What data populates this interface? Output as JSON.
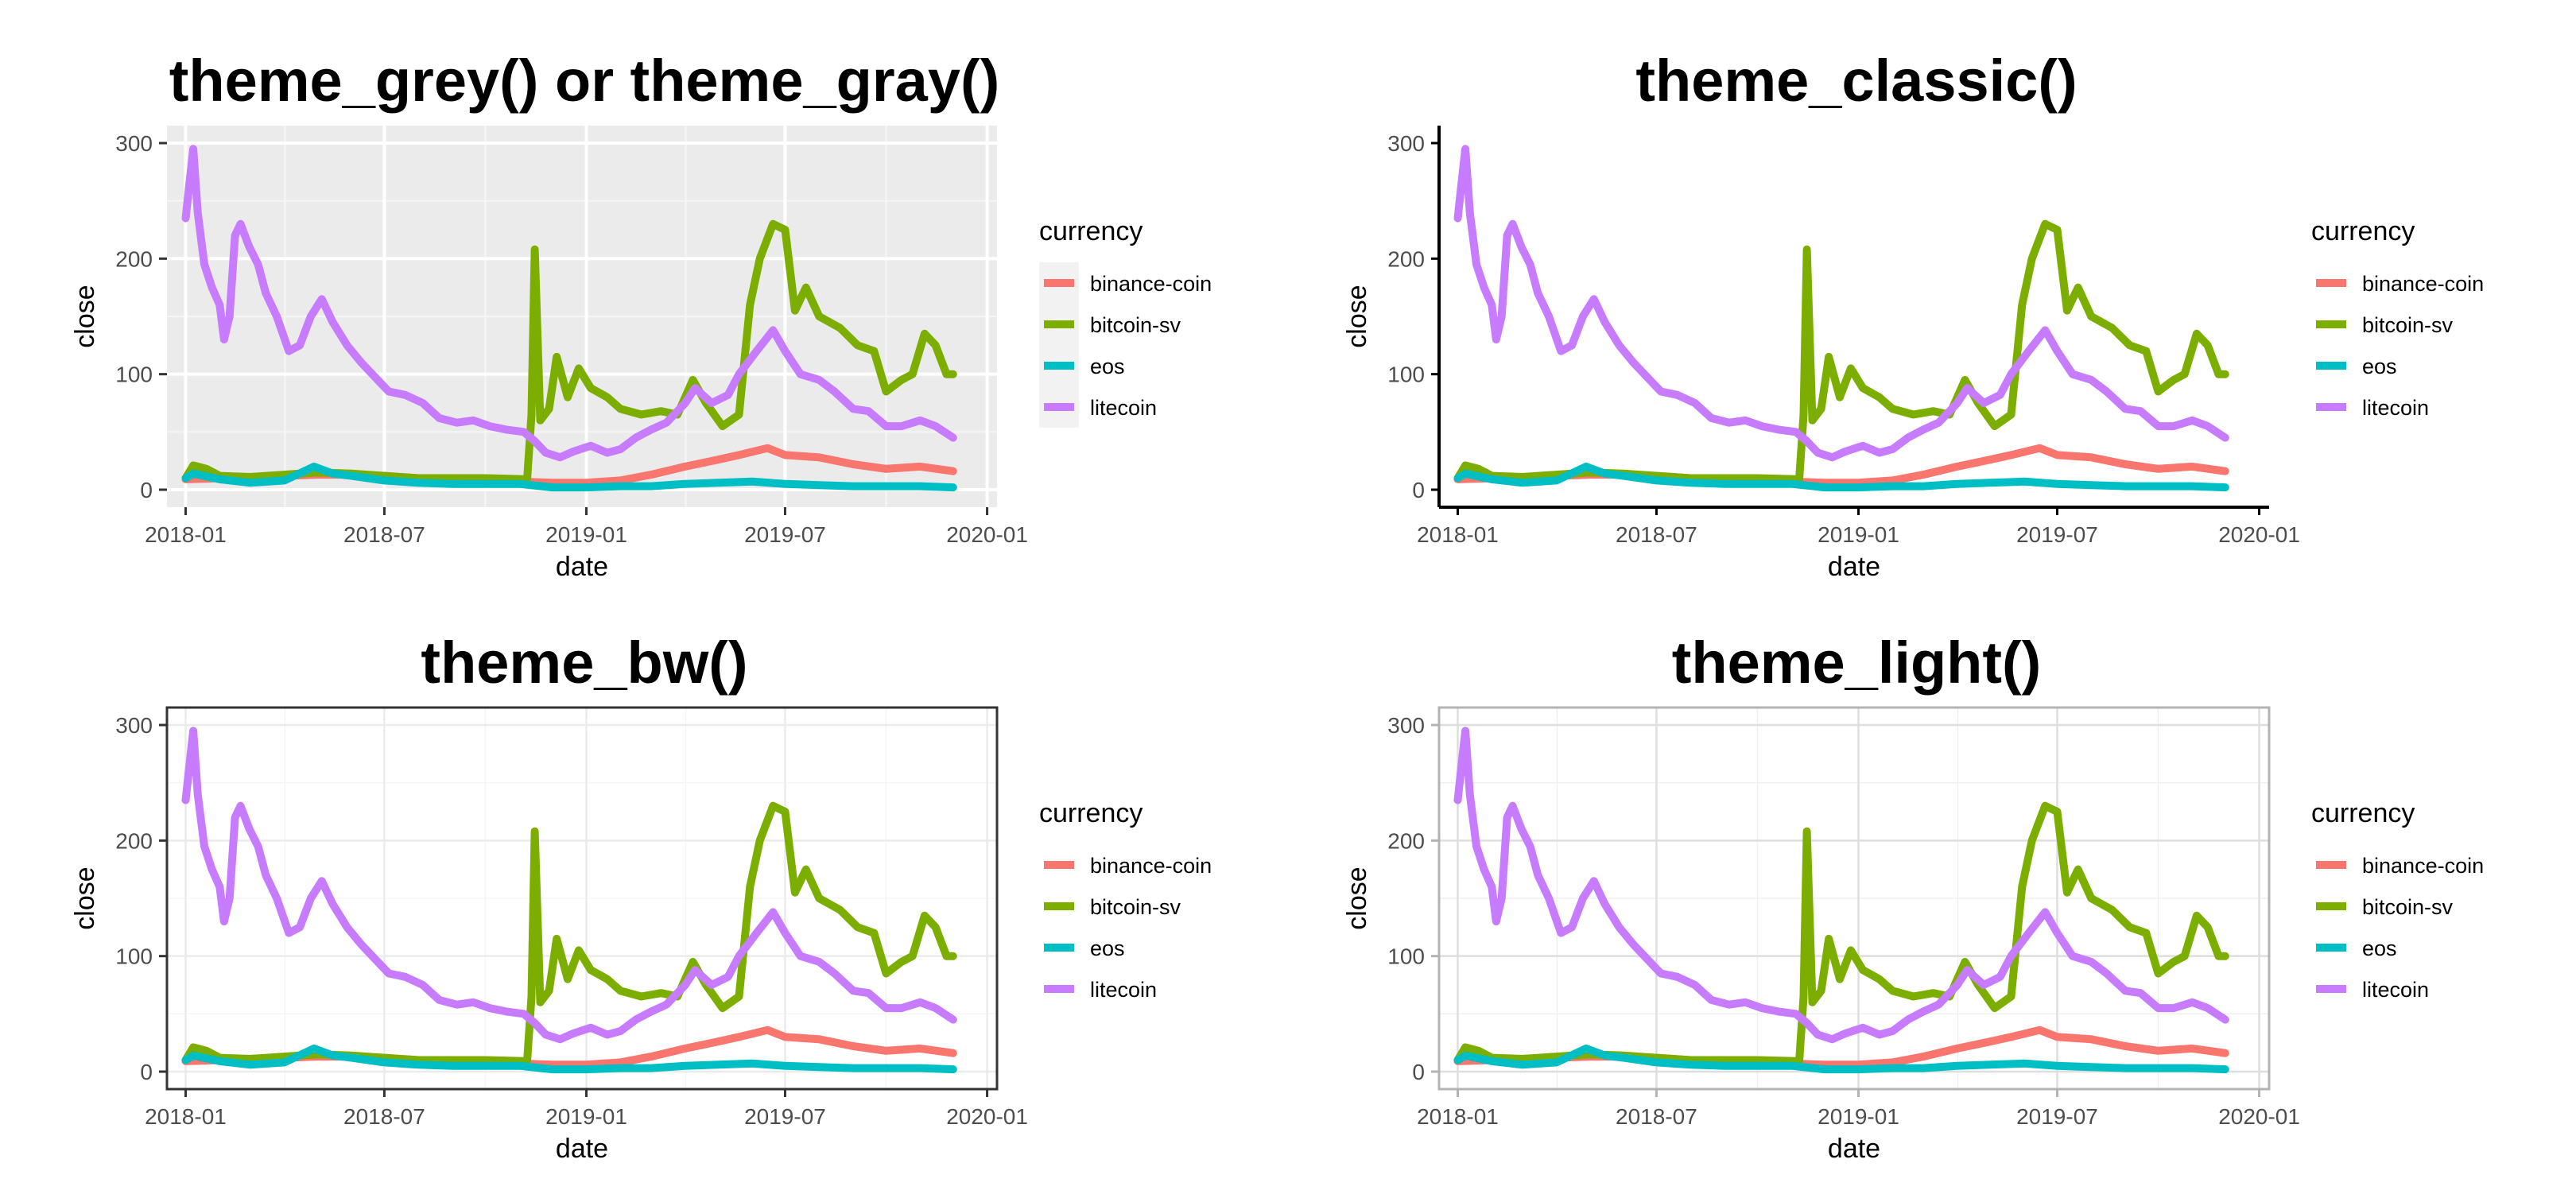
{
  "chart_data": [
    {
      "type": "line",
      "title": "theme_grey()  or  theme_gray()",
      "theme": "grey",
      "xlabel": "date",
      "ylabel": "close",
      "x_ticks": [
        "2018-01",
        "2018-07",
        "2019-01",
        "2019-07",
        "2020-01"
      ],
      "y_ticks": [
        "0",
        "100",
        "200",
        "300"
      ],
      "ylim": [
        0,
        300
      ],
      "legend_title": "currency",
      "legend_position": "right",
      "grid": true
    },
    {
      "type": "line",
      "title": "theme_classic()",
      "theme": "classic",
      "xlabel": "date",
      "ylabel": "close",
      "x_ticks": [
        "2018-01",
        "2018-07",
        "2019-01",
        "2019-07",
        "2020-01"
      ],
      "y_ticks": [
        "0",
        "100",
        "200",
        "300"
      ],
      "ylim": [
        0,
        300
      ],
      "legend_title": "currency",
      "legend_position": "right",
      "grid": false
    },
    {
      "type": "line",
      "title": "theme_bw()",
      "theme": "bw",
      "xlabel": "date",
      "ylabel": "close",
      "x_ticks": [
        "2018-01",
        "2018-07",
        "2019-01",
        "2019-07",
        "2020-01"
      ],
      "y_ticks": [
        "0",
        "100",
        "200",
        "300"
      ],
      "ylim": [
        0,
        300
      ],
      "legend_title": "currency",
      "legend_position": "right",
      "grid": true
    },
    {
      "type": "line",
      "title": "theme_light()",
      "theme": "light",
      "xlabel": "date",
      "ylabel": "close",
      "x_ticks": [
        "2018-01",
        "2018-07",
        "2019-01",
        "2019-07",
        "2020-01"
      ],
      "y_ticks": [
        "0",
        "100",
        "200",
        "300"
      ],
      "ylim": [
        0,
        300
      ],
      "legend_title": "currency",
      "legend_position": "right",
      "grid": true
    }
  ],
  "series": [
    {
      "name": "binance-coin",
      "color": "#F8766D",
      "points": [
        [
          "2018-01-01",
          9
        ],
        [
          "2018-02-01",
          10
        ],
        [
          "2018-03-01",
          11
        ],
        [
          "2018-04-01",
          12
        ],
        [
          "2018-05-01",
          13
        ],
        [
          "2018-06-01",
          13
        ],
        [
          "2018-07-01",
          12
        ],
        [
          "2018-08-01",
          10
        ],
        [
          "2018-09-01",
          9
        ],
        [
          "2018-10-01",
          9
        ],
        [
          "2018-11-01",
          7
        ],
        [
          "2018-12-01",
          6
        ],
        [
          "2019-01-01",
          6
        ],
        [
          "2019-02-01",
          8
        ],
        [
          "2019-03-01",
          13
        ],
        [
          "2019-04-01",
          20
        ],
        [
          "2019-05-01",
          26
        ],
        [
          "2019-05-20",
          30
        ],
        [
          "2019-06-15",
          36
        ],
        [
          "2019-07-01",
          30
        ],
        [
          "2019-08-01",
          28
        ],
        [
          "2019-09-01",
          22
        ],
        [
          "2019-10-01",
          18
        ],
        [
          "2019-11-01",
          20
        ],
        [
          "2019-12-01",
          16
        ]
      ]
    },
    {
      "name": "bitcoin-sv",
      "color": "#7CAE00",
      "points": [
        [
          "2018-01-01",
          10
        ],
        [
          "2018-01-08",
          21
        ],
        [
          "2018-01-20",
          18
        ],
        [
          "2018-02-01",
          12
        ],
        [
          "2018-03-01",
          11
        ],
        [
          "2018-04-01",
          13
        ],
        [
          "2018-05-01",
          15
        ],
        [
          "2018-06-01",
          14
        ],
        [
          "2018-07-01",
          12
        ],
        [
          "2018-08-01",
          10
        ],
        [
          "2018-09-01",
          10
        ],
        [
          "2018-10-01",
          10
        ],
        [
          "2018-11-08",
          9
        ],
        [
          "2018-11-12",
          65
        ],
        [
          "2018-11-15",
          208
        ],
        [
          "2018-11-20",
          60
        ],
        [
          "2018-11-28",
          70
        ],
        [
          "2018-12-05",
          115
        ],
        [
          "2018-12-15",
          80
        ],
        [
          "2018-12-25",
          105
        ],
        [
          "2019-01-05",
          88
        ],
        [
          "2019-01-20",
          80
        ],
        [
          "2019-02-01",
          70
        ],
        [
          "2019-02-20",
          65
        ],
        [
          "2019-03-10",
          68
        ],
        [
          "2019-03-25",
          65
        ],
        [
          "2019-04-08",
          95
        ],
        [
          "2019-04-20",
          75
        ],
        [
          "2019-05-05",
          55
        ],
        [
          "2019-05-20",
          65
        ],
        [
          "2019-05-30",
          160
        ],
        [
          "2019-06-08",
          200
        ],
        [
          "2019-06-20",
          230
        ],
        [
          "2019-07-01",
          225
        ],
        [
          "2019-07-10",
          155
        ],
        [
          "2019-07-20",
          175
        ],
        [
          "2019-08-01",
          150
        ],
        [
          "2019-08-20",
          140
        ],
        [
          "2019-09-05",
          125
        ],
        [
          "2019-09-20",
          120
        ],
        [
          "2019-10-01",
          85
        ],
        [
          "2019-10-15",
          95
        ],
        [
          "2019-10-25",
          100
        ],
        [
          "2019-11-05",
          135
        ],
        [
          "2019-11-15",
          125
        ],
        [
          "2019-11-25",
          100
        ],
        [
          "2019-12-01",
          100
        ]
      ]
    },
    {
      "name": "eos",
      "color": "#00BFC4",
      "points": [
        [
          "2018-01-01",
          10
        ],
        [
          "2018-01-08",
          14
        ],
        [
          "2018-02-01",
          9
        ],
        [
          "2018-03-01",
          6
        ],
        [
          "2018-04-01",
          8
        ],
        [
          "2018-04-28",
          20
        ],
        [
          "2018-05-15",
          14
        ],
        [
          "2018-06-01",
          12
        ],
        [
          "2018-07-01",
          8
        ],
        [
          "2018-08-01",
          6
        ],
        [
          "2018-09-01",
          5
        ],
        [
          "2018-10-01",
          5
        ],
        [
          "2018-11-01",
          5
        ],
        [
          "2018-12-01",
          2
        ],
        [
          "2019-01-01",
          2
        ],
        [
          "2019-02-01",
          3
        ],
        [
          "2019-03-01",
          3
        ],
        [
          "2019-04-01",
          5
        ],
        [
          "2019-05-01",
          6
        ],
        [
          "2019-06-01",
          7
        ],
        [
          "2019-07-01",
          5
        ],
        [
          "2019-08-01",
          4
        ],
        [
          "2019-09-01",
          3
        ],
        [
          "2019-10-01",
          3
        ],
        [
          "2019-11-01",
          3
        ],
        [
          "2019-12-01",
          2
        ]
      ]
    },
    {
      "name": "litecoin",
      "color": "#C77CFF",
      "points": [
        [
          "2018-01-01",
          235
        ],
        [
          "2018-01-05",
          270
        ],
        [
          "2018-01-08",
          295
        ],
        [
          "2018-01-12",
          240
        ],
        [
          "2018-01-18",
          195
        ],
        [
          "2018-01-25",
          175
        ],
        [
          "2018-02-01",
          160
        ],
        [
          "2018-02-05",
          130
        ],
        [
          "2018-02-10",
          150
        ],
        [
          "2018-02-15",
          220
        ],
        [
          "2018-02-20",
          230
        ],
        [
          "2018-02-28",
          210
        ],
        [
          "2018-03-08",
          195
        ],
        [
          "2018-03-15",
          170
        ],
        [
          "2018-03-25",
          150
        ],
        [
          "2018-04-05",
          120
        ],
        [
          "2018-04-15",
          125
        ],
        [
          "2018-04-25",
          150
        ],
        [
          "2018-05-05",
          165
        ],
        [
          "2018-05-15",
          145
        ],
        [
          "2018-05-28",
          125
        ],
        [
          "2018-06-10",
          110
        ],
        [
          "2018-06-25",
          95
        ],
        [
          "2018-07-05",
          85
        ],
        [
          "2018-07-20",
          82
        ],
        [
          "2018-08-05",
          75
        ],
        [
          "2018-08-20",
          62
        ],
        [
          "2018-09-05",
          58
        ],
        [
          "2018-09-20",
          60
        ],
        [
          "2018-10-05",
          55
        ],
        [
          "2018-10-20",
          52
        ],
        [
          "2018-11-05",
          50
        ],
        [
          "2018-11-15",
          42
        ],
        [
          "2018-11-25",
          32
        ],
        [
          "2018-12-08",
          28
        ],
        [
          "2018-12-20",
          33
        ],
        [
          "2019-01-05",
          38
        ],
        [
          "2019-01-20",
          32
        ],
        [
          "2019-02-01",
          35
        ],
        [
          "2019-02-15",
          45
        ],
        [
          "2019-03-01",
          52
        ],
        [
          "2019-03-15",
          58
        ],
        [
          "2019-04-01",
          75
        ],
        [
          "2019-04-10",
          88
        ],
        [
          "2019-04-25",
          75
        ],
        [
          "2019-05-10",
          82
        ],
        [
          "2019-05-20",
          100
        ],
        [
          "2019-06-05",
          120
        ],
        [
          "2019-06-20",
          138
        ],
        [
          "2019-07-01",
          120
        ],
        [
          "2019-07-15",
          100
        ],
        [
          "2019-08-01",
          95
        ],
        [
          "2019-08-15",
          85
        ],
        [
          "2019-09-01",
          70
        ],
        [
          "2019-09-15",
          68
        ],
        [
          "2019-10-01",
          55
        ],
        [
          "2019-10-15",
          55
        ],
        [
          "2019-11-01",
          60
        ],
        [
          "2019-11-15",
          55
        ],
        [
          "2019-12-01",
          45
        ]
      ]
    }
  ]
}
